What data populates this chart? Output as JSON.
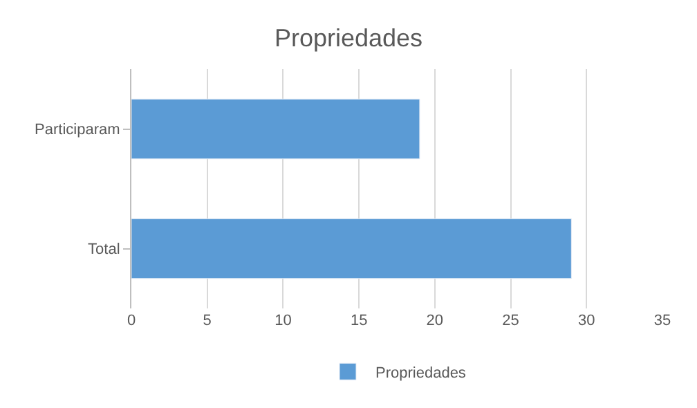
{
  "chart_data": {
    "type": "bar",
    "orientation": "horizontal",
    "title": "Propriedades",
    "categories": [
      "Participaram",
      "Total"
    ],
    "series": [
      {
        "name": "Propriedades",
        "color": "#5b9bd5",
        "values": [
          19,
          29
        ]
      }
    ],
    "xlim": [
      0,
      35
    ],
    "xticks": [
      0,
      5,
      10,
      15,
      20,
      25,
      30,
      35
    ],
    "grid": "x",
    "legend": "bottom"
  }
}
